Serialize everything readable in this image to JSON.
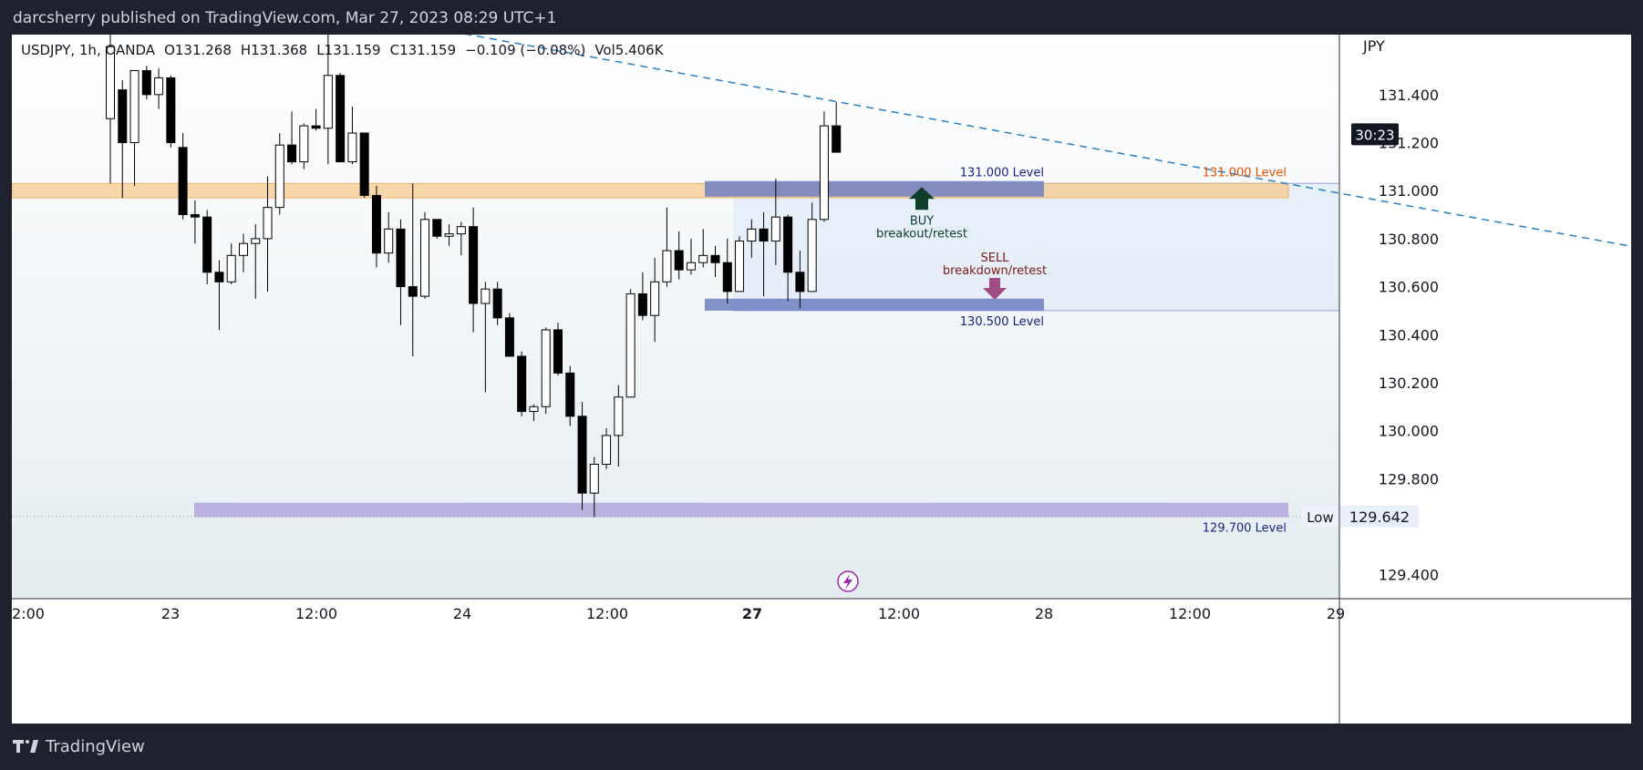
{
  "publisher_line": "darcsherry published on TradingView.com, Mar 27, 2023 08:29 UTC+1",
  "footer_brand": "TradingView",
  "ohlc": {
    "symbol": "USDJPY, 1h, OANDA",
    "open": "O131.268",
    "high": "H131.368",
    "low": "L131.159",
    "close": "C131.159",
    "change": "−0.109 (−0.08%)",
    "volume": "Vol5.406K"
  },
  "colors": {
    "up_candle": "#ffffff",
    "down_candle": "#000000",
    "resistance_zone": "#f7c98d",
    "level_box": "#6f7fbf",
    "low_zone": "#b3a6dc",
    "trendline": "#2a7fc2",
    "buy_arrow": "#0f3d2a",
    "sell_arrow": "#a04a86",
    "orange_label": "#e65100",
    "navy_label": "#1a237e",
    "lightning": "#9c27b0"
  },
  "chart_data": {
    "type": "candlestick",
    "timeframe": "1h",
    "y_unit": "JPY",
    "ylim": [
      129.3,
      131.65
    ],
    "y_ticks": [
      "131.400",
      "131.200",
      "131.000",
      "130.800",
      "130.600",
      "130.400",
      "130.200",
      "130.000",
      "129.800",
      "129.400"
    ],
    "x_ticks": [
      "2:00",
      "23",
      "12:00",
      "24",
      "12:00",
      "27",
      "12:00",
      "28",
      "12:00",
      "29"
    ],
    "x_tick_bold": "27",
    "current_price_label": "30:23",
    "low_label": "Low",
    "low_value": "129.642",
    "annotations": {
      "level_131": "131.000 Level",
      "level_131_orange": "131.000 Level",
      "level_1305": "130.500 Level",
      "level_1297": "129.700 Level",
      "buy_title": "BUY",
      "buy_sub": "breakout/retest",
      "sell_title": "SELL",
      "sell_sub": "breakdown/retest"
    },
    "levels": [
      {
        "name": "131.000 Level",
        "zone": [
          130.97,
          131.03
        ]
      },
      {
        "name": "130.500 Level",
        "zone": [
          130.5,
          130.55
        ]
      },
      {
        "name": "129.700 Level",
        "zone": [
          129.64,
          129.7
        ]
      }
    ],
    "trendline": {
      "from": [
        22,
        131.72
      ],
      "to": [
        144,
        130.6
      ]
    },
    "candles": [
      {
        "o": 131.3,
        "h": 131.71,
        "l": 131.03,
        "c": 131.6
      },
      {
        "o": 131.42,
        "h": 131.46,
        "l": 130.97,
        "c": 131.2
      },
      {
        "o": 131.2,
        "h": 131.5,
        "l": 131.02,
        "c": 131.5
      },
      {
        "o": 131.5,
        "h": 131.52,
        "l": 131.38,
        "c": 131.4
      },
      {
        "o": 131.4,
        "h": 131.51,
        "l": 131.34,
        "c": 131.47
      },
      {
        "o": 131.47,
        "h": 131.48,
        "l": 131.18,
        "c": 131.2
      },
      {
        "o": 131.18,
        "h": 131.24,
        "l": 130.88,
        "c": 130.9
      },
      {
        "o": 130.9,
        "h": 130.96,
        "l": 130.78,
        "c": 130.89
      },
      {
        "o": 130.89,
        "h": 130.92,
        "l": 130.61,
        "c": 130.66
      },
      {
        "o": 130.66,
        "h": 130.71,
        "l": 130.42,
        "c": 130.62
      },
      {
        "o": 130.62,
        "h": 130.78,
        "l": 130.61,
        "c": 130.73
      },
      {
        "o": 130.73,
        "h": 130.82,
        "l": 130.66,
        "c": 130.78
      },
      {
        "o": 130.78,
        "h": 130.86,
        "l": 130.55,
        "c": 130.8
      },
      {
        "o": 130.8,
        "h": 131.06,
        "l": 130.58,
        "c": 130.93
      },
      {
        "o": 130.93,
        "h": 131.24,
        "l": 130.9,
        "c": 131.19
      },
      {
        "o": 131.19,
        "h": 131.33,
        "l": 131.11,
        "c": 131.12
      },
      {
        "o": 131.12,
        "h": 131.28,
        "l": 131.09,
        "c": 131.27
      },
      {
        "o": 131.27,
        "h": 131.34,
        "l": 131.25,
        "c": 131.26
      },
      {
        "o": 131.26,
        "h": 131.65,
        "l": 131.11,
        "c": 131.48
      },
      {
        "o": 131.48,
        "h": 131.49,
        "l": 131.12,
        "c": 131.12
      },
      {
        "o": 131.12,
        "h": 131.35,
        "l": 131.11,
        "c": 131.24
      },
      {
        "o": 131.24,
        "h": 131.24,
        "l": 130.97,
        "c": 130.98
      },
      {
        "o": 130.98,
        "h": 131.02,
        "l": 130.68,
        "c": 130.74
      },
      {
        "o": 130.74,
        "h": 130.91,
        "l": 130.7,
        "c": 130.84
      },
      {
        "o": 130.84,
        "h": 130.88,
        "l": 130.44,
        "c": 130.6
      },
      {
        "o": 130.6,
        "h": 131.03,
        "l": 130.31,
        "c": 130.56
      },
      {
        "o": 130.56,
        "h": 130.91,
        "l": 130.55,
        "c": 130.88
      },
      {
        "o": 130.88,
        "h": 130.88,
        "l": 130.8,
        "c": 130.81
      },
      {
        "o": 130.81,
        "h": 130.86,
        "l": 130.77,
        "c": 130.82
      },
      {
        "o": 130.82,
        "h": 130.87,
        "l": 130.73,
        "c": 130.85
      },
      {
        "o": 130.85,
        "h": 130.93,
        "l": 130.41,
        "c": 130.53
      },
      {
        "o": 130.53,
        "h": 130.62,
        "l": 130.16,
        "c": 130.59
      },
      {
        "o": 130.59,
        "h": 130.62,
        "l": 130.44,
        "c": 130.47
      },
      {
        "o": 130.47,
        "h": 130.49,
        "l": 130.31,
        "c": 130.31
      },
      {
        "o": 130.31,
        "h": 130.33,
        "l": 130.06,
        "c": 130.08
      },
      {
        "o": 130.08,
        "h": 130.11,
        "l": 130.04,
        "c": 130.1
      },
      {
        "o": 130.1,
        "h": 130.43,
        "l": 130.07,
        "c": 130.42
      },
      {
        "o": 130.42,
        "h": 130.45,
        "l": 130.23,
        "c": 130.24
      },
      {
        "o": 130.24,
        "h": 130.27,
        "l": 130.02,
        "c": 130.06
      },
      {
        "o": 130.06,
        "h": 130.12,
        "l": 129.67,
        "c": 129.74
      },
      {
        "o": 129.74,
        "h": 129.89,
        "l": 129.64,
        "c": 129.86
      },
      {
        "o": 129.86,
        "h": 130.01,
        "l": 129.84,
        "c": 129.98
      },
      {
        "o": 129.98,
        "h": 130.19,
        "l": 129.85,
        "c": 130.14
      },
      {
        "o": 130.14,
        "h": 130.59,
        "l": 130.14,
        "c": 130.57
      },
      {
        "o": 130.57,
        "h": 130.66,
        "l": 130.46,
        "c": 130.48
      },
      {
        "o": 130.48,
        "h": 130.72,
        "l": 130.37,
        "c": 130.62
      },
      {
        "o": 130.62,
        "h": 130.93,
        "l": 130.6,
        "c": 130.75
      },
      {
        "o": 130.75,
        "h": 130.83,
        "l": 130.63,
        "c": 130.67
      },
      {
        "o": 130.67,
        "h": 130.8,
        "l": 130.65,
        "c": 130.7
      },
      {
        "o": 130.7,
        "h": 130.84,
        "l": 130.68,
        "c": 130.73
      },
      {
        "o": 130.73,
        "h": 130.77,
        "l": 130.64,
        "c": 130.7
      },
      {
        "o": 130.7,
        "h": 130.8,
        "l": 130.53,
        "c": 130.58
      },
      {
        "o": 130.58,
        "h": 130.81,
        "l": 130.58,
        "c": 130.79
      },
      {
        "o": 130.79,
        "h": 130.88,
        "l": 130.72,
        "c": 130.84
      },
      {
        "o": 130.84,
        "h": 130.91,
        "l": 130.56,
        "c": 130.79
      },
      {
        "o": 130.79,
        "h": 131.05,
        "l": 130.69,
        "c": 130.89
      },
      {
        "o": 130.89,
        "h": 130.9,
        "l": 130.54,
        "c": 130.66
      },
      {
        "o": 130.66,
        "h": 130.75,
        "l": 130.51,
        "c": 130.58
      },
      {
        "o": 130.58,
        "h": 130.95,
        "l": 130.58,
        "c": 130.88
      },
      {
        "o": 130.88,
        "h": 131.33,
        "l": 130.87,
        "c": 131.27
      },
      {
        "o": 131.27,
        "h": 131.37,
        "l": 131.16,
        "c": 131.16
      }
    ]
  }
}
